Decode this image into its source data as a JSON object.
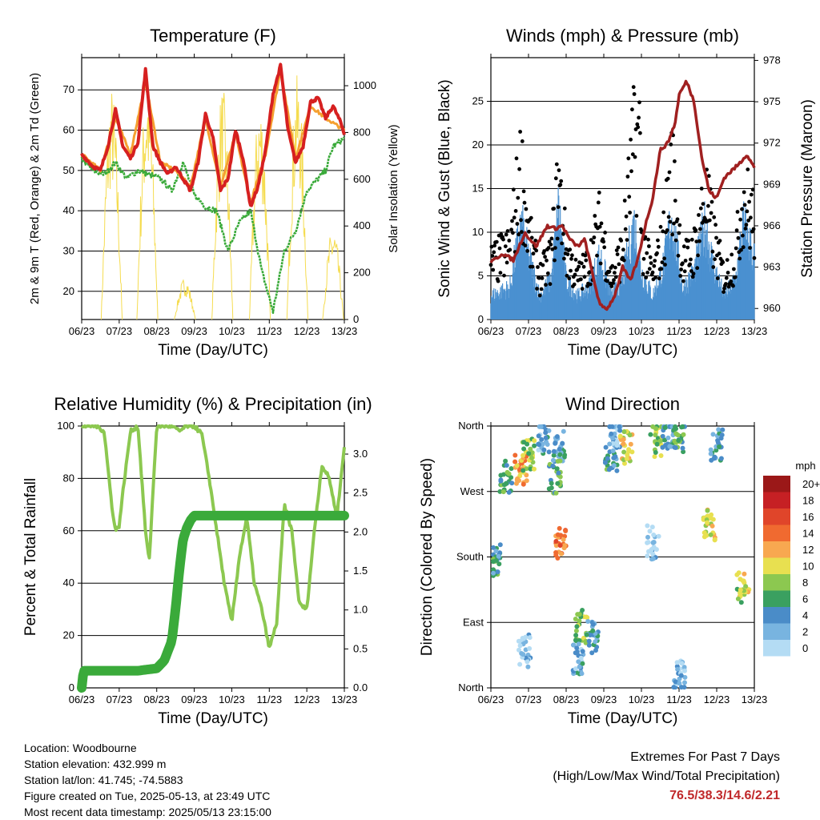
{
  "chart_data": [
    {
      "type": "line",
      "title": "Temperature (F)",
      "xlabel": "Time (Day/UTC)",
      "ylabel": "2m & 9m T (Red, Orange) & 2m Td (Green)",
      "y2label": "Solar Insolation (Yellow)",
      "x_ticks": [
        "06/23",
        "07/23",
        "08/23",
        "09/23",
        "10/23",
        "11/23",
        "12/23",
        "13/23"
      ],
      "ylim": [
        13,
        78
      ],
      "y_ticks": [
        20,
        30,
        40,
        50,
        60,
        70
      ],
      "y2lim": [
        0,
        1120
      ],
      "y2_ticks": [
        0,
        200,
        400,
        600,
        800,
        1000
      ],
      "grid": true,
      "series": [
        {
          "name": "2m T",
          "color": "#d62020",
          "x": [
            0,
            0.3,
            0.5,
            0.7,
            0.9,
            1.1,
            1.3,
            1.5,
            1.7,
            1.9,
            2.1,
            2.3,
            2.5,
            2.7,
            2.9,
            3.1,
            3.3,
            3.5,
            3.7,
            3.9,
            4.1,
            4.3,
            4.5,
            4.7,
            4.9,
            5.1,
            5.3,
            5.5,
            5.7,
            5.9,
            6.1,
            6.3,
            6.5,
            6.7,
            6.9,
            7.0
          ],
          "values": [
            54,
            51,
            50,
            56,
            65,
            56,
            53,
            57,
            75,
            56,
            52,
            49,
            51,
            48,
            45,
            52,
            64,
            58,
            45,
            48,
            60,
            53,
            41,
            46,
            55,
            69,
            76,
            60,
            52,
            56,
            67,
            68,
            63,
            66,
            62,
            59
          ]
        },
        {
          "name": "9m T",
          "color": "#f5a030",
          "x": [
            0,
            0.5,
            0.9,
            1.3,
            1.7,
            2.1,
            2.5,
            2.9,
            3.3,
            3.7,
            4.1,
            4.5,
            4.9,
            5.3,
            5.7,
            6.1,
            6.5,
            7.0
          ],
          "values": [
            54,
            50,
            63,
            54,
            72,
            52,
            50,
            46,
            63,
            46,
            59,
            42,
            54,
            75,
            53,
            66,
            63,
            60
          ]
        },
        {
          "name": "2m Td",
          "color": "#3aaa3a",
          "x": [
            0,
            0.3,
            0.6,
            0.9,
            1.2,
            1.5,
            1.8,
            2.1,
            2.4,
            2.7,
            3.0,
            3.3,
            3.6,
            3.9,
            4.2,
            4.5,
            4.8,
            5.1,
            5.4,
            5.7,
            6.0,
            6.3,
            6.5,
            6.7,
            7.0
          ],
          "values": [
            53,
            50,
            49,
            52,
            48,
            50,
            49,
            48,
            45,
            52,
            44,
            41,
            40,
            30,
            37,
            40,
            25,
            15,
            30,
            35,
            45,
            48,
            50,
            56,
            58
          ]
        },
        {
          "name": "Solar Insolation",
          "axis": "y2",
          "color": "#f5dc50",
          "daily_peaks": [
            {
              "x": 0.8,
              "peak": 1000
            },
            {
              "x": 1.75,
              "peak": 1050
            },
            {
              "x": 2.75,
              "peak": 180
            },
            {
              "x": 3.75,
              "peak": 1000
            },
            {
              "x": 4.75,
              "peak": 950
            },
            {
              "x": 5.75,
              "peak": 1050
            },
            {
              "x": 6.7,
              "peak": 400
            }
          ]
        }
      ]
    },
    {
      "type": "scatter",
      "title": "Winds (mph) & Pressure (mb)",
      "xlabel": "Time (Day/UTC)",
      "ylabel": "Sonic Wind & Gust (Blue, Black)",
      "y2label": "Station Pressure (Maroon)",
      "x_ticks": [
        "06/23",
        "07/23",
        "08/23",
        "09/23",
        "10/23",
        "11/23",
        "12/23",
        "13/23"
      ],
      "ylim": [
        0,
        30
      ],
      "y_ticks": [
        0,
        5,
        10,
        15,
        20,
        25
      ],
      "y2lim": [
        959.2,
        978.2
      ],
      "y2_ticks": [
        960,
        963,
        966,
        969,
        972,
        975,
        978
      ],
      "grid": true,
      "series": [
        {
          "name": "Sonic Wind",
          "color": "#4a90d0",
          "x": [
            0,
            0.5,
            0.8,
            1.0,
            1.3,
            1.6,
            1.8,
            2.0,
            2.3,
            2.6,
            2.9,
            3.2,
            3.5,
            3.8,
            4.0,
            4.3,
            4.6,
            4.8,
            5.1,
            5.4,
            5.7,
            5.9,
            6.2,
            6.5,
            6.7,
            7.0
          ],
          "values": [
            3,
            4,
            12,
            8,
            3,
            5,
            14,
            5,
            3,
            4,
            8,
            3,
            5,
            12,
            6,
            3,
            7,
            13,
            4,
            6,
            12,
            7,
            3,
            5,
            12,
            8
          ]
        },
        {
          "name": "Gust",
          "color": "#000000",
          "x": [
            0,
            0.5,
            0.8,
            1.0,
            1.3,
            1.6,
            1.8,
            2.0,
            2.3,
            2.6,
            2.9,
            3.2,
            3.5,
            3.8,
            3.95,
            4.0,
            4.3,
            4.6,
            4.8,
            5.1,
            5.4,
            5.7,
            5.9,
            6.2,
            6.5,
            6.7,
            7.0
          ],
          "values": [
            8,
            10,
            22,
            12,
            6,
            9,
            20,
            10,
            6,
            8,
            14,
            6,
            10,
            25,
            27,
            12,
            6,
            12,
            22,
            8,
            10,
            18,
            12,
            6,
            9,
            18,
            14
          ]
        },
        {
          "name": "Station Pressure",
          "axis": "y2",
          "color": "#a02020",
          "x": [
            0,
            0.3,
            0.6,
            0.9,
            1.2,
            1.5,
            1.7,
            1.9,
            2.1,
            2.3,
            2.5,
            2.7,
            2.9,
            3.1,
            3.3,
            3.5,
            3.7,
            3.9,
            4.1,
            4.3,
            4.5,
            4.7,
            4.9,
            5.0,
            5.2,
            5.4,
            5.6,
            5.8,
            6.0,
            6.2,
            6.4,
            6.6,
            6.8,
            7.0
          ],
          "values": [
            963.3,
            964,
            963.5,
            965.5,
            964.5,
            966,
            965.8,
            966,
            965,
            964.5,
            965,
            962.5,
            960.2,
            960,
            961,
            963,
            962,
            963.5,
            966,
            968,
            971.5,
            972,
            973.5,
            975.5,
            976.5,
            975,
            971,
            968.5,
            968,
            969.5,
            970,
            970.5,
            971.2,
            970.2
          ]
        }
      ]
    },
    {
      "type": "line",
      "title": "Relative Humidity (%) & Precipitation (in)",
      "xlabel": "Time (Day/UTC)",
      "ylabel": "Percent & Total Rainfall",
      "x_ticks": [
        "06/23",
        "07/23",
        "08/23",
        "09/23",
        "10/23",
        "11/23",
        "12/23",
        "13/23"
      ],
      "ylim": [
        0,
        100
      ],
      "y_ticks": [
        0,
        20,
        40,
        60,
        80,
        100
      ],
      "y2lim": [
        0,
        3.36
      ],
      "y2_ticks": [
        "0.0",
        "0.5",
        "1.0",
        "1.5",
        "2.0",
        "2.5",
        "3.0"
      ],
      "grid": true,
      "series": [
        {
          "name": "Relative Humidity",
          "color": "#8cc850",
          "x": [
            0,
            0.4,
            0.6,
            0.8,
            0.9,
            1.0,
            1.1,
            1.3,
            1.5,
            1.6,
            1.7,
            1.8,
            1.9,
            2.0,
            2.2,
            2.4,
            2.6,
            2.8,
            3.0,
            3.2,
            3.4,
            3.6,
            3.8,
            4.0,
            4.2,
            4.4,
            4.6,
            4.8,
            5.0,
            5.2,
            5.4,
            5.6,
            5.8,
            6.0,
            6.2,
            6.4,
            6.6,
            6.8,
            7.0
          ],
          "values": [
            100,
            100,
            98,
            70,
            60,
            62,
            75,
            98,
            100,
            80,
            60,
            48,
            75,
            100,
            100,
            100,
            98,
            100,
            100,
            97,
            80,
            60,
            40,
            25,
            50,
            65,
            40,
            30,
            15,
            25,
            70,
            60,
            32,
            30,
            60,
            85,
            80,
            65,
            92
          ]
        },
        {
          "name": "Total Precipitation",
          "axis": "y2",
          "color": "#3aaa3a",
          "x": [
            0,
            0.05,
            0.1,
            1.5,
            2.0,
            2.2,
            2.4,
            2.5,
            2.6,
            2.7,
            2.8,
            2.9,
            3.0,
            3.2,
            7.0
          ],
          "values": [
            0.0,
            0.22,
            0.22,
            0.22,
            0.25,
            0.35,
            0.6,
            1.0,
            1.5,
            1.9,
            2.05,
            2.15,
            2.21,
            2.21,
            2.21
          ]
        }
      ]
    },
    {
      "type": "scatter",
      "title": "Wind Direction",
      "xlabel": "Time (Day/UTC)",
      "ylabel": "Direction (Colored By Speed)",
      "x_ticks": [
        "06/23",
        "07/23",
        "08/23",
        "09/23",
        "10/23",
        "11/23",
        "12/23",
        "13/23"
      ],
      "y_ticks": [
        "North",
        "West",
        "South",
        "East",
        "North"
      ],
      "ylim": [
        0,
        360
      ],
      "grid": true,
      "legend": {
        "title": "mph",
        "labels": [
          "20+",
          "18",
          "16",
          "14",
          "12",
          "10",
          "8",
          "6",
          "4",
          "2",
          "0"
        ],
        "colors": [
          "#9b1818",
          "#c62024",
          "#e0452a",
          "#f06a30",
          "#f8a850",
          "#e8e050",
          "#8cc850",
          "#3aa060",
          "#4a8cc8",
          "#78b4e0",
          "#b4dcf4"
        ],
        "placement": "right"
      },
      "clusters": [
        {
          "x": 0.4,
          "dir": 290,
          "speed": 6
        },
        {
          "x": 0.8,
          "dir": 300,
          "speed": 12
        },
        {
          "x": 1.0,
          "dir": 320,
          "speed": 8
        },
        {
          "x": 1.4,
          "dir": 345,
          "speed": 3
        },
        {
          "x": 1.8,
          "dir": 330,
          "speed": 4
        },
        {
          "x": 1.7,
          "dir": 290,
          "speed": 6
        },
        {
          "x": 1.85,
          "dir": 200,
          "speed": 14
        },
        {
          "x": 2.4,
          "dir": 85,
          "speed": 8
        },
        {
          "x": 2.7,
          "dir": 70,
          "speed": 4
        },
        {
          "x": 3.2,
          "dir": 320,
          "speed": 5
        },
        {
          "x": 3.6,
          "dir": 330,
          "speed": 10
        },
        {
          "x": 3.3,
          "dir": 345,
          "speed": 2
        },
        {
          "x": 4.4,
          "dir": 340,
          "speed": 8
        },
        {
          "x": 4.7,
          "dir": 350,
          "speed": 4
        },
        {
          "x": 5.0,
          "dir": 345,
          "speed": 6
        },
        {
          "x": 5.8,
          "dir": 225,
          "speed": 10
        },
        {
          "x": 6.0,
          "dir": 335,
          "speed": 4
        },
        {
          "x": 6.7,
          "dir": 140,
          "speed": 9
        },
        {
          "x": 5.0,
          "dir": 15,
          "speed": 2
        },
        {
          "x": 0.9,
          "dir": 50,
          "speed": 1
        },
        {
          "x": 4.3,
          "dir": 200,
          "speed": 1
        },
        {
          "x": 2.3,
          "dir": 40,
          "speed": 3
        },
        {
          "x": 0.1,
          "dir": 175,
          "speed": 5
        }
      ]
    }
  ],
  "footer": {
    "location": "Location: Woodbourne",
    "elevation": "Station elevation: 432.999 m",
    "latlon": "Station lat/lon: 41.745; -74.5883",
    "created": "Figure created on Tue, 2025-05-13, at 23:49 UTC",
    "recent": "Most recent data timestamp: 2025/05/13 23:15:00"
  },
  "extremes": {
    "title": "Extremes For Past 7 Days",
    "subtitle": "(High/Low/Max Wind/Total Precipitation)",
    "values": "76.5/38.3/14.6/2.21"
  }
}
